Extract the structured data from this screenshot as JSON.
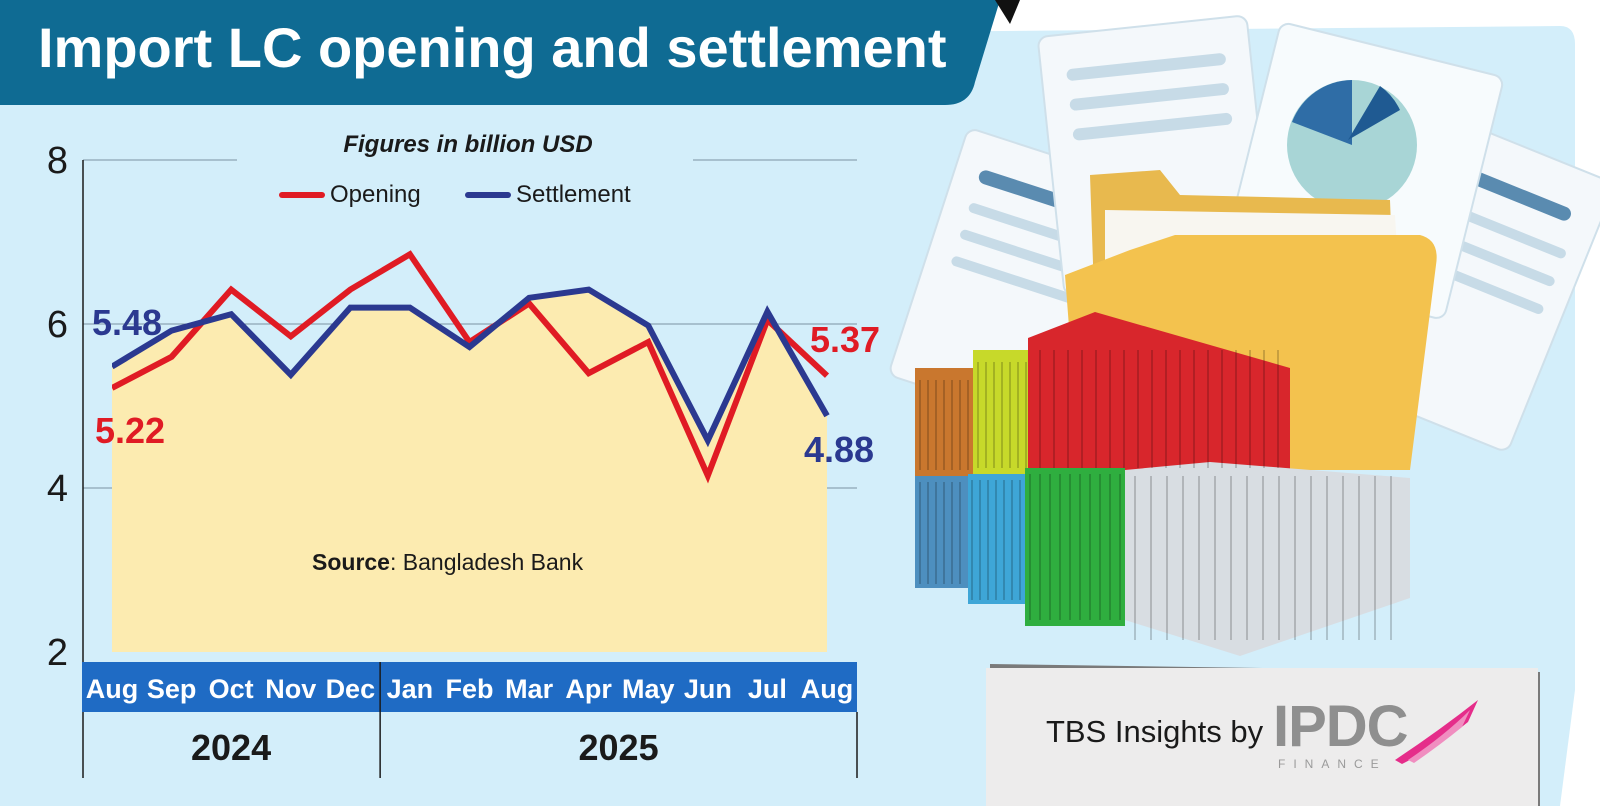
{
  "title": "Import LC opening and settlement",
  "brand": {
    "prefix": "TBS Insights by",
    "logo_text": "IPDC",
    "logo_sub": "FINANCE"
  },
  "colors": {
    "header_bg": "#0f6b93",
    "panel_bg": "#d3eefa",
    "area_fill": "#fcebb0",
    "axis_bar": "#1f6bc4",
    "opening": "#e01b24",
    "settlement": "#2b3990"
  },
  "icons": [
    "documents-illustration",
    "pie-chart-icon",
    "folder-icon",
    "shipping-containers-illustration"
  ],
  "chart_data": {
    "type": "line",
    "subtitle": "Figures in billion USD",
    "source_label": "Source",
    "source_text": ": Bangladesh Bank",
    "categories": [
      "Aug",
      "Sep",
      "Oct",
      "Nov",
      "Dec",
      "Jan",
      "Feb",
      "Mar",
      "Apr",
      "May",
      "Jun",
      "Jul",
      "Aug"
    ],
    "year_groups": [
      {
        "label": "2024",
        "count": 5
      },
      {
        "label": "2025",
        "count": 8
      }
    ],
    "ylim": [
      2,
      8
    ],
    "yticks": [
      "2",
      "4",
      "6",
      "8"
    ],
    "grid": true,
    "legend_position": "top",
    "series": [
      {
        "name": "Opening",
        "values": [
          5.22,
          5.6,
          6.42,
          5.85,
          6.42,
          6.85,
          5.78,
          6.25,
          5.4,
          5.78,
          4.15,
          6.05,
          5.37
        ]
      },
      {
        "name": "Settlement",
        "values": [
          5.48,
          5.92,
          6.12,
          5.38,
          6.2,
          6.2,
          5.72,
          6.32,
          6.42,
          5.98,
          4.58,
          6.15,
          4.88
        ]
      }
    ],
    "annotations": {
      "settlement_start": "5.48",
      "opening_start": "5.22",
      "opening_end": "5.37",
      "settlement_end": "4.88"
    }
  }
}
